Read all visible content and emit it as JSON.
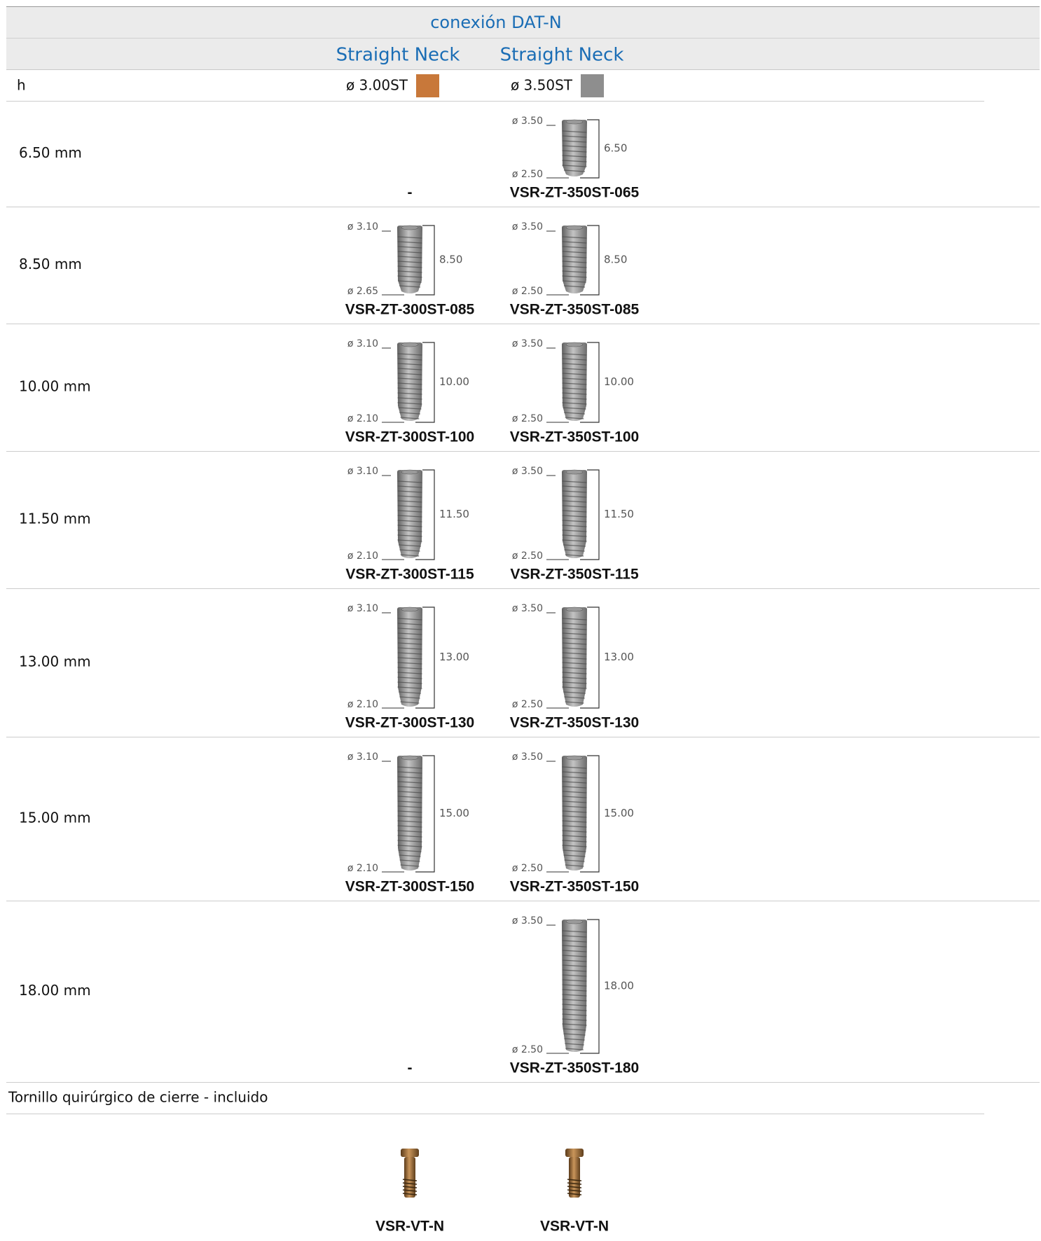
{
  "header": {
    "title": "conexión DAT-N",
    "columns": [
      "Straight Neck",
      "Straight Neck"
    ]
  },
  "table": {
    "h_label": "h",
    "diameters": [
      {
        "label": "ø 3.00ST",
        "swatch": "#c8783a"
      },
      {
        "label": "ø 3.50ST",
        "swatch": "#8e8e8e"
      }
    ],
    "rows": [
      {
        "h": "6.50 mm",
        "cells": [
          {
            "code": "-"
          },
          {
            "top": "ø 3.50",
            "bottom": "ø 2.50",
            "length": "6.50",
            "code": "VSR-ZT-350ST-065"
          }
        ]
      },
      {
        "h": "8.50 mm",
        "cells": [
          {
            "top": "ø 3.10",
            "bottom": "ø 2.65",
            "length": "8.50",
            "code": "VSR-ZT-300ST-085"
          },
          {
            "top": "ø 3.50",
            "bottom": "ø 2.50",
            "length": "8.50",
            "code": "VSR-ZT-350ST-085"
          }
        ]
      },
      {
        "h": "10.00 mm",
        "cells": [
          {
            "top": "ø 3.10",
            "bottom": "ø 2.10",
            "length": "10.00",
            "code": "VSR-ZT-300ST-100"
          },
          {
            "top": "ø 3.50",
            "bottom": "ø 2.50",
            "length": "10.00",
            "code": "VSR-ZT-350ST-100"
          }
        ]
      },
      {
        "h": "11.50 mm",
        "cells": [
          {
            "top": "ø 3.10",
            "bottom": "ø 2.10",
            "length": "11.50",
            "code": "VSR-ZT-300ST-115"
          },
          {
            "top": "ø 3.50",
            "bottom": "ø 2.50",
            "length": "11.50",
            "code": "VSR-ZT-350ST-115"
          }
        ]
      },
      {
        "h": "13.00 mm",
        "cells": [
          {
            "top": "ø 3.10",
            "bottom": "ø 2.10",
            "length": "13.00",
            "code": "VSR-ZT-300ST-130"
          },
          {
            "top": "ø 3.50",
            "bottom": "ø 2.50",
            "length": "13.00",
            "code": "VSR-ZT-350ST-130"
          }
        ]
      },
      {
        "h": "15.00 mm",
        "cells": [
          {
            "top": "ø 3.10",
            "bottom": "ø 2.10",
            "length": "15.00",
            "code": "VSR-ZT-300ST-150"
          },
          {
            "top": "ø 3.50",
            "bottom": "ø 2.50",
            "length": "15.00",
            "code": "VSR-ZT-350ST-150"
          }
        ]
      },
      {
        "h": "18.00 mm",
        "cells": [
          {
            "code": "-"
          },
          {
            "top": "ø 3.50",
            "bottom": "ø 2.50",
            "length": "18.00",
            "code": "VSR-ZT-350ST-180"
          }
        ]
      }
    ]
  },
  "screws": {
    "label": "Tornillo quirúrgico de cierre - incluido",
    "codes": [
      "VSR-VT-N",
      "VSR-VT-N"
    ]
  }
}
